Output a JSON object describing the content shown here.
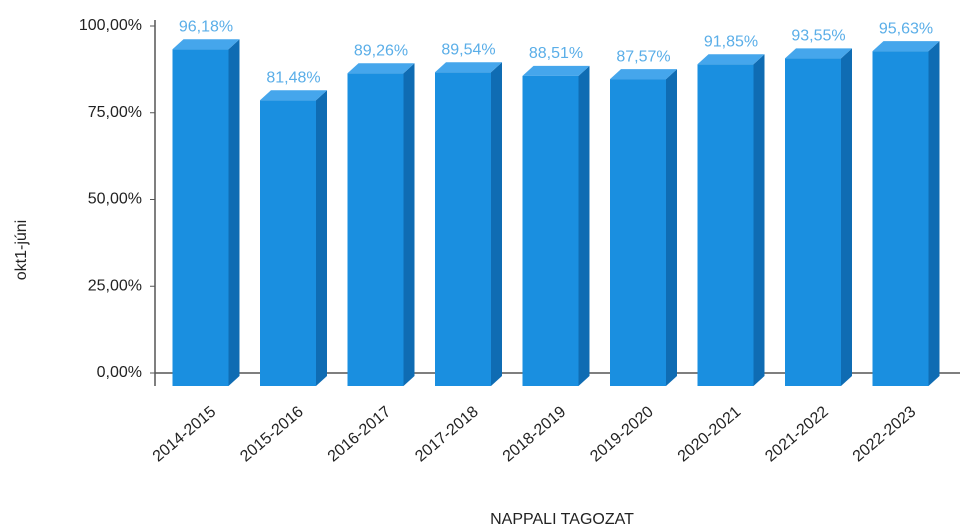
{
  "chart_data": {
    "type": "bar3d",
    "x_label": "NAPPALI TAGOZAT",
    "y_label": "okt1-júni",
    "categories": [
      "2014-2015",
      "2015-2016",
      "2016-2017",
      "2017-2018",
      "2018-2019",
      "2019-2020",
      "2020-2021",
      "2021-2022",
      "2022-2023"
    ],
    "values": [
      96.18,
      81.48,
      89.26,
      89.54,
      88.51,
      87.57,
      91.85,
      93.55,
      95.63
    ],
    "value_labels": [
      "96,18%",
      "81,48%",
      "89,26%",
      "89,54%",
      "88,51%",
      "87,57%",
      "91,85%",
      "93,55%",
      "95,63%"
    ],
    "color": "#1a8fe0",
    "ylim": [
      0,
      100
    ],
    "yticks": [
      {
        "value": 0,
        "label": "0,00%"
      },
      {
        "value": 25,
        "label": "25,00%"
      },
      {
        "value": 50,
        "label": "50,00%"
      },
      {
        "value": 75,
        "label": "75,00%"
      },
      {
        "value": 100,
        "label": "100,00%"
      }
    ],
    "grid": false
  }
}
